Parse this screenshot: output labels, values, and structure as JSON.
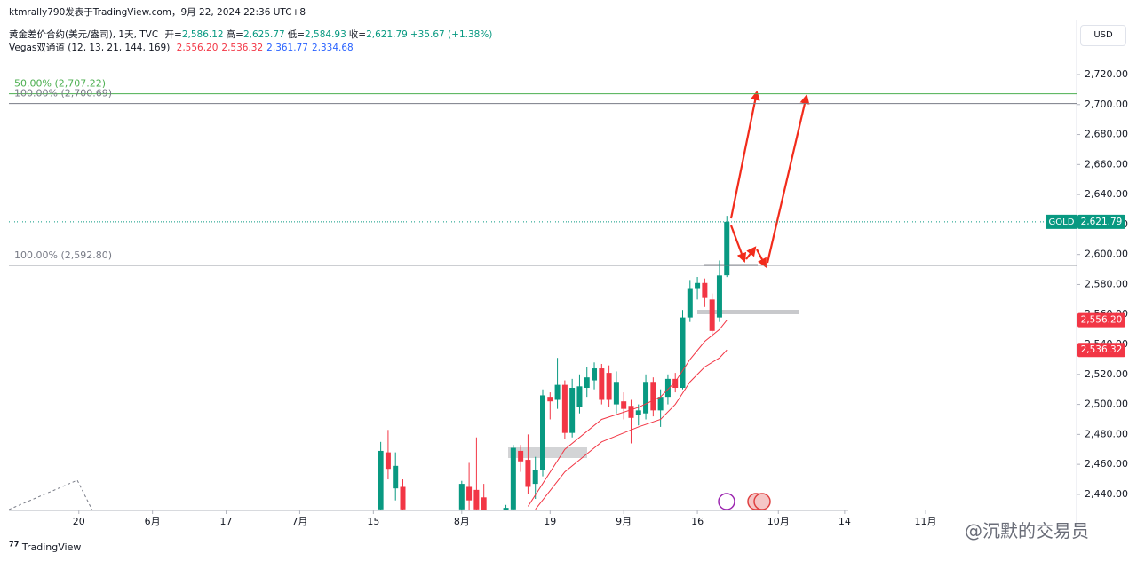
{
  "header": {
    "publisher": "ktmrally790发表于TradingView.com，9月 22, 2024 22:36 UTC+8",
    "symbol": "黄金差价合约(美元/盎司), 1天, TVC",
    "ohlc": [
      {
        "label": "开=",
        "value": "2,586.12"
      },
      {
        "label": "高=",
        "value": "2,625.77"
      },
      {
        "label": "低=",
        "value": "2,584.93"
      },
      {
        "label": "收=",
        "value": "2,621.79"
      }
    ],
    "change": "+35.67 (+1.38%)",
    "indicator": "Vegas双通道 (12, 13, 21, 144, 169)",
    "indicator_values": [
      {
        "text": "2,556.20",
        "color": "#f23645"
      },
      {
        "text": "2,536.32",
        "color": "#f23645"
      },
      {
        "text": "2,361.77",
        "color": "#2962ff"
      },
      {
        "text": "2,334.68",
        "color": "#2962ff"
      }
    ],
    "currency": "USD"
  },
  "footer": {
    "brand": "TradingView",
    "watermark": "@沉默的交易员"
  },
  "chart_data": {
    "type": "candlestick",
    "up_color": "#089981",
    "down_color": "#f23645",
    "xlim": [
      -0.5,
      144.5
    ],
    "xticks": [
      {
        "value": 9,
        "label": "20"
      },
      {
        "value": 19,
        "label": "6月"
      },
      {
        "value": 29,
        "label": "17"
      },
      {
        "value": 39,
        "label": "7月"
      },
      {
        "value": 49,
        "label": "15"
      },
      {
        "value": 61,
        "label": "8月"
      },
      {
        "value": 73,
        "label": "19"
      },
      {
        "value": 83,
        "label": "9月"
      },
      {
        "value": 93,
        "label": "16"
      },
      {
        "value": 104,
        "label": "10月"
      },
      {
        "value": 113,
        "label": "14"
      },
      {
        "value": 124,
        "label": "11月"
      }
    ],
    "ylim": [
      2429.3,
      2756.7
    ],
    "yticks": [
      {
        "value": 2440,
        "label": "2,440.00"
      },
      {
        "value": 2460,
        "label": "2,460.00"
      },
      {
        "value": 2480,
        "label": "2,480.00"
      },
      {
        "value": 2500,
        "label": "2,500.00"
      },
      {
        "value": 2520,
        "label": "2,520.00"
      },
      {
        "value": 2540,
        "label": "2,540.00"
      },
      {
        "value": 2560,
        "label": "2,560.00"
      },
      {
        "value": 2580,
        "label": "2,580.00"
      },
      {
        "value": 2600,
        "label": "2,600.00"
      },
      {
        "value": 2620,
        "label": "2,620.00"
      },
      {
        "value": 2640,
        "label": "2,640.00"
      },
      {
        "value": 2660,
        "label": "2,660.00"
      },
      {
        "value": 2680,
        "label": "2,680.00"
      },
      {
        "value": 2700,
        "label": "2,700.00"
      },
      {
        "value": 2720,
        "label": "2,720.00"
      }
    ],
    "x": [
      50,
      51,
      52,
      53,
      61,
      62,
      63,
      64,
      67,
      68,
      69,
      70,
      71,
      72,
      73,
      74,
      75,
      76,
      77,
      78,
      79,
      80,
      81,
      82,
      83,
      84,
      85,
      86,
      87,
      88,
      89,
      90,
      91,
      92,
      93,
      94,
      95,
      96,
      97
    ],
    "open": [
      2430,
      2468,
      2444,
      2445,
      2430,
      2445,
      2443,
      2438,
      2427,
      2430,
      2469,
      2463,
      2447,
      2456,
      2505,
      2503,
      2513,
      2481,
      2498,
      2511,
      2516,
      2524,
      2521,
      2500,
      2502,
      2499,
      2493,
      2494,
      2515,
      2496,
      2505,
      2517,
      2511,
      2558,
      2577,
      2581,
      2570,
      2558,
      2586.12
    ],
    "high": [
      2475,
      2483,
      2468,
      2450,
      2449,
      2461,
      2478,
      2447,
      2433,
      2473,
      2473,
      2480,
      2465,
      2510,
      2508,
      2531,
      2516,
      2517,
      2520,
      2525,
      2528,
      2527,
      2526,
      2522,
      2508,
      2503,
      2500,
      2520,
      2518,
      2510,
      2520,
      2521,
      2563,
      2583,
      2585,
      2584,
      2574,
      2596,
      2625.77
    ],
    "low": [
      2425,
      2450,
      2436,
      2420,
      2425,
      2428,
      2420,
      2420,
      2422,
      2425,
      2455,
      2440,
      2437,
      2452,
      2490,
      2497,
      2477,
      2478,
      2494,
      2505,
      2510,
      2500,
      2498,
      2494,
      2490,
      2474,
      2486,
      2490,
      2492,
      2485,
      2500,
      2508,
      2510,
      2555,
      2570,
      2565,
      2545,
      2555,
      2584.93
    ],
    "close": [
      2469,
      2457,
      2459,
      2430,
      2447,
      2436,
      2430,
      2429,
      2431,
      2471,
      2462,
      2445,
      2456,
      2506,
      2502,
      2513,
      2481,
      2511,
      2512,
      2518,
      2524,
      2503,
      2503,
      2515,
      2497,
      2491,
      2496,
      2515,
      2496,
      2505,
      2517,
      2511,
      2558,
      2577,
      2581,
      2571,
      2549,
      2586,
      2621.79
    ],
    "lines": [
      {
        "color": "#f23645",
        "x": [
          70,
          75,
          80,
          85,
          88,
          90,
          92,
          94,
          96,
          97
        ],
        "values": [
          2432,
          2470,
          2490,
          2498,
          2505,
          2515,
          2530,
          2542,
          2550,
          2556.2
        ]
      },
      {
        "color": "#f23645",
        "x": [
          71,
          75,
          80,
          85,
          88,
          90,
          92,
          94,
          96,
          97
        ],
        "values": [
          2430,
          2455,
          2475,
          2485,
          2490,
          2500,
          2515,
          2525,
          2531,
          2536.32
        ]
      }
    ],
    "levels": [
      {
        "label": "50.00% (2,707.22)",
        "value": 2707.22,
        "color": "#4caf50"
      },
      {
        "label": "100.00% (2,700.69)",
        "value": 2700.69,
        "color": "#787b86"
      },
      {
        "label": "100.00% (2,592.80)",
        "value": 2592.8,
        "color": "#787b86"
      }
    ],
    "price_labels": [
      {
        "name": "GOLD",
        "value": 2621.79,
        "label": "2,621.79",
        "color": "#089981"
      },
      {
        "value": 2556.2,
        "label": "2,556.20",
        "color": "#f23645"
      },
      {
        "value": 2536.32,
        "label": "2,536.32",
        "color": "#f23645"
      }
    ]
  }
}
